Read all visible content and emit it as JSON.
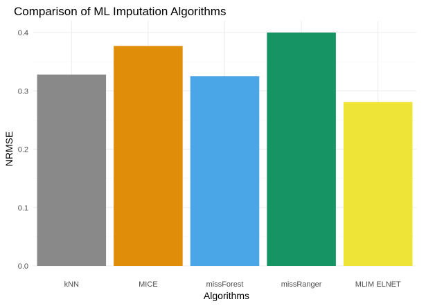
{
  "chart_data": {
    "type": "bar",
    "title": "Comparison of ML Imputation Algorithms",
    "xlabel": "Algorithms",
    "ylabel": "NRMSE",
    "categories": [
      "kNN",
      "MICE",
      "missForest",
      "missRanger",
      "MLIM ELNET"
    ],
    "values": [
      0.328,
      0.377,
      0.325,
      0.4,
      0.281
    ],
    "colors": [
      "#898989",
      "#E08E0A",
      "#4AA6E6",
      "#169463",
      "#EEE337"
    ],
    "ylim": [
      0,
      0.4
    ],
    "yticks": [
      0.0,
      0.1,
      0.2,
      0.3,
      0.4
    ],
    "ytick_labels": [
      "0.0",
      "0.1",
      "0.2",
      "0.3",
      "0.4"
    ],
    "grid": true,
    "legend": "none"
  }
}
